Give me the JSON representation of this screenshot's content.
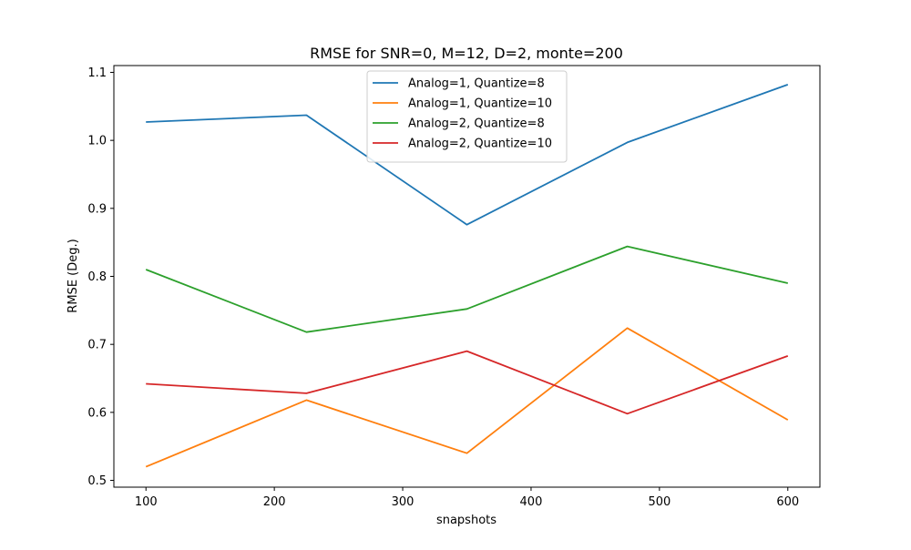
{
  "chart_data": {
    "type": "line",
    "title": "RMSE for SNR=0, M=12, D=2, monte=200",
    "xlabel": "snapshots",
    "ylabel": "RMSE (Deg.)",
    "x": [
      100,
      225,
      350,
      475,
      600
    ],
    "xlim": [
      75,
      625
    ],
    "ylim": [
      0.49,
      1.11
    ],
    "xticks": [
      100,
      200,
      300,
      400,
      500,
      600
    ],
    "yticks": [
      0.5,
      0.6,
      0.7,
      0.8,
      0.9,
      1.0,
      1.1
    ],
    "ytick_labels": [
      "0.5",
      "0.6",
      "0.7",
      "0.8",
      "0.9",
      "1.0",
      "1.1"
    ],
    "grid": false,
    "legend_position": "top-center",
    "series": [
      {
        "name": "Analog=1, Quantize=8",
        "color": "#1f77b4",
        "values": [
          1.027,
          1.037,
          0.876,
          0.997,
          1.082
        ]
      },
      {
        "name": "Analog=1, Quantize=10",
        "color": "#ff7f0e",
        "values": [
          0.52,
          0.618,
          0.54,
          0.724,
          0.589
        ]
      },
      {
        "name": "Analog=2, Quantize=8",
        "color": "#2ca02c",
        "values": [
          0.81,
          0.718,
          0.752,
          0.844,
          0.79
        ]
      },
      {
        "name": "Analog=2, Quantize=10",
        "color": "#d62728",
        "values": [
          0.642,
          0.628,
          0.69,
          0.598,
          0.683
        ]
      }
    ]
  }
}
